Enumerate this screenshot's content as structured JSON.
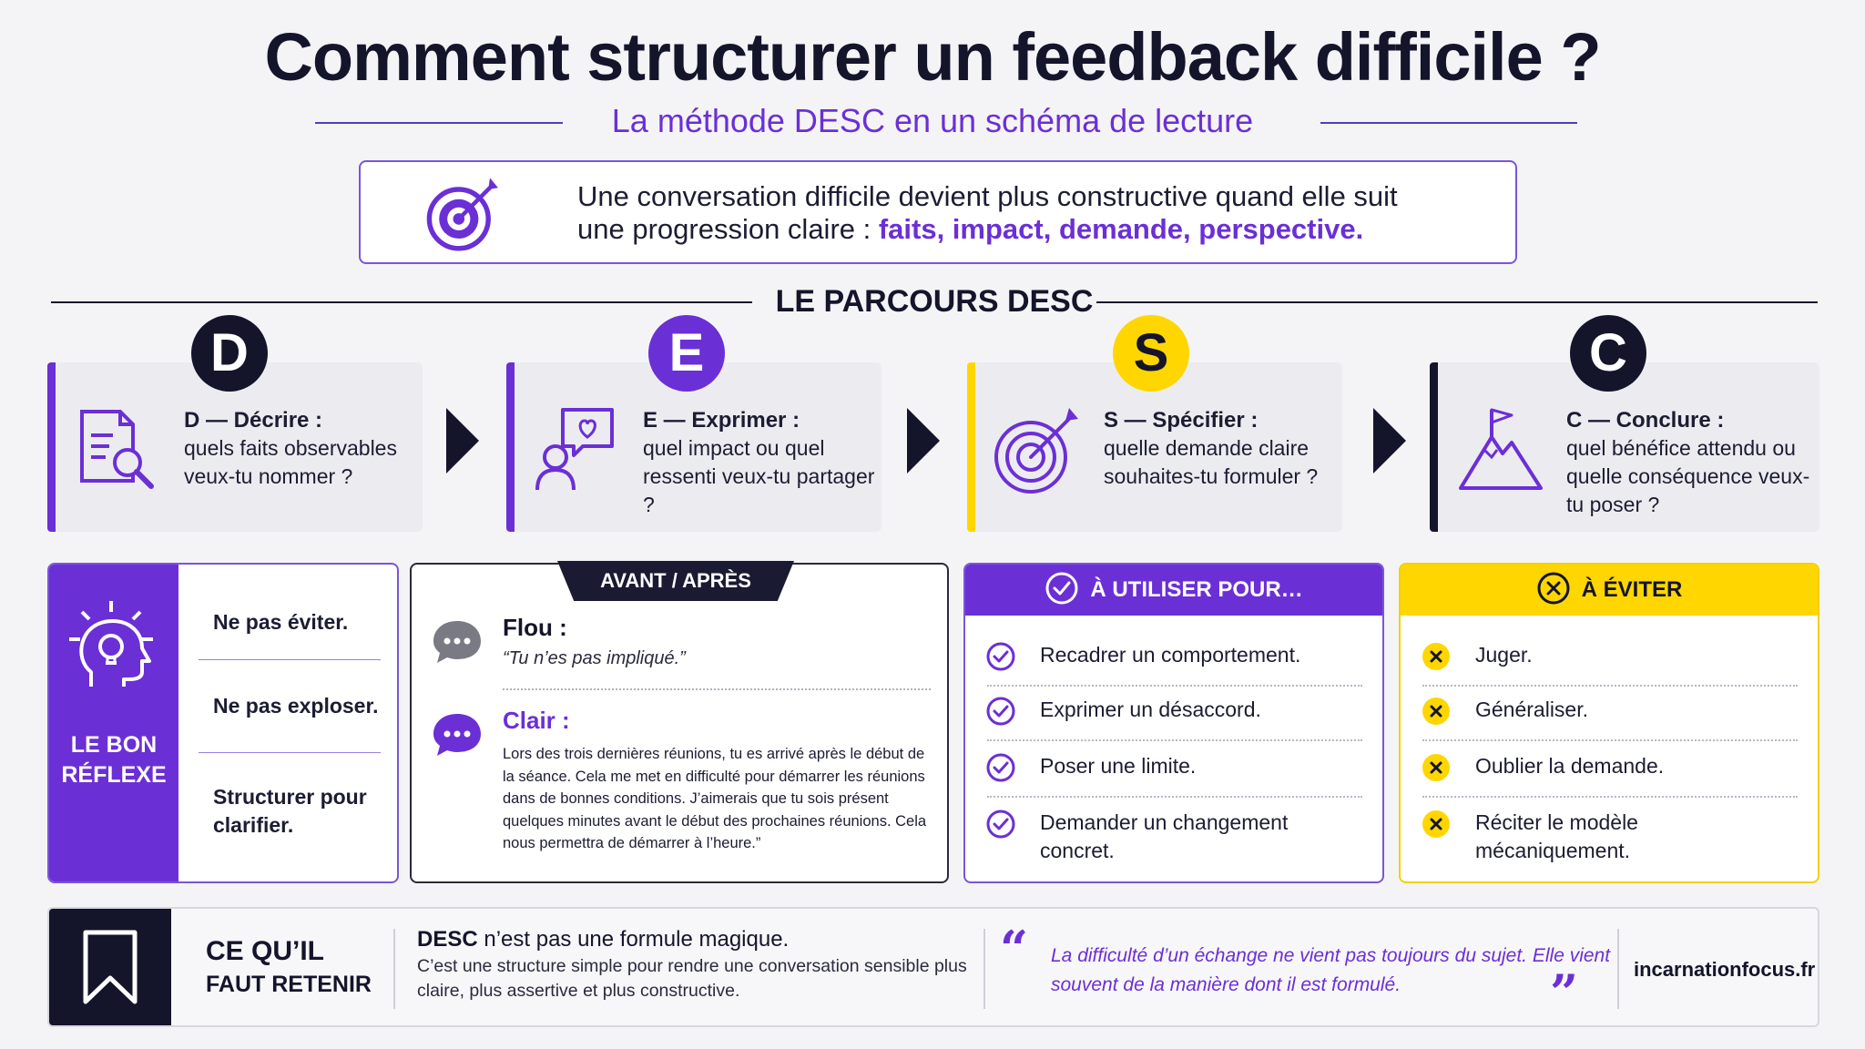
{
  "header": {
    "title": "Comment structurer un feedback difficile ?",
    "subtitle": "La méthode DESC en un schéma de lecture"
  },
  "intro": {
    "icon": "target-arrow-icon",
    "text_line1": "Une conversation difficile devient plus constructive quand elle suit",
    "text_line2_prefix": "une progression claire : ",
    "text_line2_highlight": "faits, impact, demande, perspective."
  },
  "parcours": {
    "title": "LE PARCOURS DESC",
    "steps": [
      {
        "letter": "D",
        "title": "D — Décrire :",
        "body": "quels faits observables veux-tu nommer ?",
        "icon": "document-magnifier-icon"
      },
      {
        "letter": "E",
        "title": "E — Exprimer :",
        "body": "quel impact ou quel ressenti veux-tu partager ?",
        "icon": "person-heart-bubble-icon"
      },
      {
        "letter": "S",
        "title": "S — Spécifier :",
        "body": "quelle demande claire souhaites-tu formuler ?",
        "icon": "target-arrow-icon"
      },
      {
        "letter": "C",
        "title": "C — Conclure :",
        "body": "quel bénéfice attendu ou quelle conséquence veux-tu poser ?",
        "icon": "mountain-flag-icon"
      }
    ]
  },
  "reflex": {
    "label": "LE BON RÉFLEXE",
    "icon": "head-lightbulb-icon",
    "items": [
      "Ne pas éviter.",
      "Ne pas exploser.",
      "Structurer pour clarifier."
    ]
  },
  "avant_apres": {
    "tab": "AVANT / APRÈS",
    "flou_title": "Flou :",
    "flou_quote": "“Tu n’es pas impliqué.”",
    "clair_title": "Clair :",
    "clair_text": "Lors des trois dernières réunions, tu es arrivé après le début de la séance. Cela me met en difficulté pour démarrer les réunions dans de bonnes conditions. J’aimerais que tu sois présent quelques minutes avant le début des prochaines réunions. Cela nous permettra de démarrer à l’heure.”"
  },
  "a_utiliser": {
    "title": "À UTILISER POUR…",
    "icon": "check-circle-icon",
    "items": [
      "Recadrer un comportement.",
      "Exprimer un désaccord.",
      "Poser une limite.",
      "Demander un changement concret."
    ]
  },
  "a_eviter": {
    "title": "À ÉVITER",
    "icon": "x-circle-icon",
    "items": [
      "Juger.",
      "Généraliser.",
      "Oublier la demande.",
      "Réciter le modèle mécaniquement."
    ]
  },
  "footer": {
    "icon": "bookmark-icon",
    "retain_line1": "CE QU’IL",
    "retain_line2": "FAUT RETENIR",
    "desc_bold": "DESC",
    "desc_rest": " n’est pas une formule magique.",
    "desc_body": "C’est une structure simple pour rendre une conversation sensible plus claire, plus assertive et plus constructive.",
    "quote": "La difficulté d’un échange ne vient pas toujours du sujet. Elle vient souvent de la manière dont il est formulé.",
    "site": "incarnationfocus.fr"
  },
  "colors": {
    "navy": "#14142b",
    "purple": "#6b2fd6",
    "yellow": "#ffd600",
    "light_purple_border": "#7a55d9"
  }
}
